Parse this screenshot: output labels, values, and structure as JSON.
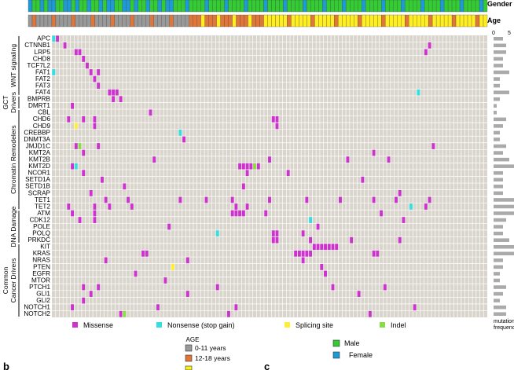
{
  "chart_data": {
    "type": "heatmap",
    "annotation_rows": [
      {
        "label": "Gender"
      },
      {
        "label": "Age"
      }
    ],
    "genes": [
      "APC",
      "CTNNB1",
      "LRP5",
      "CHD8",
      "TCF7L2",
      "FAT1",
      "FAT2",
      "FAT3",
      "FAT4",
      "BMPRB",
      "DMRT1",
      "CBL",
      "CHD6",
      "CHD9",
      "CREBBP",
      "DNMT3A",
      "JMJD1C",
      "KMT2A",
      "KMT2B",
      "KMT2D",
      "NCOR1",
      "SETD1A",
      "SETD1B",
      "SCRAP",
      "TET1",
      "TET2",
      "ATM",
      "CDK12",
      "POLE",
      "POLQ",
      "PRKDC",
      "KIT",
      "KRAS",
      "NRAS",
      "PTEN",
      "EGFR",
      "MTOR",
      "PTCH1",
      "GLI1",
      "GLI2",
      "NOTCH1",
      "NOTCH2"
    ],
    "groups": [
      {
        "label": "WNT signaling",
        "start": 0,
        "end": 8
      },
      {
        "label": "GCT Drivers",
        "start": 9,
        "end": 10
      },
      {
        "label": "Chromatin Remodelers",
        "start": 11,
        "end": 25
      },
      {
        "label": "DNA Damage",
        "start": 26,
        "end": 30
      },
      {
        "label": "Common Cancer Drivers",
        "start": 31,
        "end": 41
      }
    ],
    "n_samples": 117,
    "mutations": [
      [
        0,
        0,
        "nonsense"
      ],
      [
        0,
        1,
        "missense"
      ],
      [
        1,
        3,
        "missense"
      ],
      [
        1,
        101,
        "missense"
      ],
      [
        2,
        6,
        "missense"
      ],
      [
        2,
        7,
        "missense"
      ],
      [
        2,
        100,
        "missense"
      ],
      [
        3,
        8,
        "missense"
      ],
      [
        4,
        9,
        "missense"
      ],
      [
        5,
        0,
        "nonsense"
      ],
      [
        5,
        10,
        "missense"
      ],
      [
        5,
        12,
        "missense"
      ],
      [
        6,
        11,
        "missense"
      ],
      [
        7,
        12,
        "missense"
      ],
      [
        8,
        15,
        "missense"
      ],
      [
        8,
        16,
        "missense"
      ],
      [
        8,
        17,
        "missense"
      ],
      [
        8,
        98,
        "nonsense"
      ],
      [
        9,
        16,
        "missense"
      ],
      [
        9,
        18,
        "missense"
      ],
      [
        10,
        5,
        "missense"
      ],
      [
        11,
        26,
        "missense"
      ],
      [
        12,
        4,
        "missense"
      ],
      [
        12,
        8,
        "missense"
      ],
      [
        12,
        11,
        "missense"
      ],
      [
        12,
        59,
        "missense"
      ],
      [
        12,
        60,
        "missense"
      ],
      [
        13,
        6,
        "splicing"
      ],
      [
        13,
        11,
        "missense"
      ],
      [
        13,
        60,
        "missense"
      ],
      [
        14,
        34,
        "nonsense"
      ],
      [
        15,
        35,
        "missense"
      ],
      [
        16,
        6,
        "missense"
      ],
      [
        16,
        7,
        "indel"
      ],
      [
        16,
        12,
        "missense"
      ],
      [
        16,
        102,
        "missense"
      ],
      [
        17,
        8,
        "missense"
      ],
      [
        17,
        86,
        "missense"
      ],
      [
        18,
        27,
        "missense"
      ],
      [
        18,
        58,
        "missense"
      ],
      [
        18,
        79,
        "missense"
      ],
      [
        18,
        90,
        "missense"
      ],
      [
        19,
        5,
        "missense"
      ],
      [
        19,
        6,
        "nonsense"
      ],
      [
        19,
        50,
        "missense"
      ],
      [
        19,
        51,
        "missense"
      ],
      [
        19,
        52,
        "missense"
      ],
      [
        19,
        53,
        "missense"
      ],
      [
        19,
        54,
        "indel"
      ],
      [
        19,
        55,
        "missense"
      ],
      [
        20,
        8,
        "missense"
      ],
      [
        20,
        52,
        "missense"
      ],
      [
        20,
        63,
        "missense"
      ],
      [
        21,
        13,
        "missense"
      ],
      [
        21,
        83,
        "missense"
      ],
      [
        22,
        19,
        "missense"
      ],
      [
        22,
        51,
        "missense"
      ],
      [
        23,
        10,
        "missense"
      ],
      [
        23,
        93,
        "missense"
      ],
      [
        24,
        14,
        "missense"
      ],
      [
        24,
        20,
        "missense"
      ],
      [
        24,
        34,
        "missense"
      ],
      [
        24,
        41,
        "missense"
      ],
      [
        24,
        48,
        "missense"
      ],
      [
        24,
        58,
        "missense"
      ],
      [
        24,
        68,
        "missense"
      ],
      [
        24,
        77,
        "missense"
      ],
      [
        24,
        86,
        "missense"
      ],
      [
        24,
        92,
        "missense"
      ],
      [
        24,
        101,
        "missense"
      ],
      [
        25,
        4,
        "missense"
      ],
      [
        25,
        11,
        "missense"
      ],
      [
        25,
        15,
        "missense"
      ],
      [
        25,
        21,
        "missense"
      ],
      [
        25,
        49,
        "missense"
      ],
      [
        25,
        52,
        "missense"
      ],
      [
        25,
        96,
        "nonsense"
      ],
      [
        25,
        100,
        "missense"
      ],
      [
        26,
        5,
        "missense"
      ],
      [
        26,
        11,
        "missense"
      ],
      [
        26,
        48,
        "missense"
      ],
      [
        26,
        49,
        "missense"
      ],
      [
        26,
        50,
        "missense"
      ],
      [
        26,
        51,
        "missense"
      ],
      [
        26,
        57,
        "missense"
      ],
      [
        26,
        88,
        "missense"
      ],
      [
        27,
        7,
        "missense"
      ],
      [
        27,
        11,
        "missense"
      ],
      [
        27,
        69,
        "nonsense"
      ],
      [
        27,
        94,
        "missense"
      ],
      [
        28,
        31,
        "missense"
      ],
      [
        28,
        71,
        "missense"
      ],
      [
        29,
        44,
        "nonsense"
      ],
      [
        29,
        59,
        "missense"
      ],
      [
        29,
        60,
        "missense"
      ],
      [
        29,
        67,
        "missense"
      ],
      [
        30,
        59,
        "missense"
      ],
      [
        30,
        60,
        "missense"
      ],
      [
        30,
        69,
        "missense"
      ],
      [
        30,
        80,
        "missense"
      ],
      [
        30,
        93,
        "missense"
      ],
      [
        31,
        70,
        "missense"
      ],
      [
        31,
        71,
        "missense"
      ],
      [
        31,
        72,
        "missense"
      ],
      [
        31,
        73,
        "missense"
      ],
      [
        31,
        74,
        "missense"
      ],
      [
        31,
        75,
        "missense"
      ],
      [
        31,
        76,
        "missense"
      ],
      [
        32,
        24,
        "missense"
      ],
      [
        32,
        25,
        "missense"
      ],
      [
        32,
        65,
        "missense"
      ],
      [
        32,
        66,
        "missense"
      ],
      [
        32,
        67,
        "missense"
      ],
      [
        32,
        68,
        "missense"
      ],
      [
        32,
        69,
        "missense"
      ],
      [
        32,
        86,
        "missense"
      ],
      [
        32,
        87,
        "missense"
      ],
      [
        33,
        14,
        "missense"
      ],
      [
        33,
        36,
        "missense"
      ],
      [
        33,
        67,
        "missense"
      ],
      [
        34,
        32,
        "splicing"
      ],
      [
        34,
        72,
        "missense"
      ],
      [
        35,
        22,
        "missense"
      ],
      [
        35,
        73,
        "missense"
      ],
      [
        36,
        30,
        "missense"
      ],
      [
        37,
        8,
        "missense"
      ],
      [
        37,
        12,
        "missense"
      ],
      [
        37,
        44,
        "missense"
      ],
      [
        37,
        75,
        "missense"
      ],
      [
        37,
        89,
        "missense"
      ],
      [
        38,
        10,
        "missense"
      ],
      [
        38,
        36,
        "missense"
      ],
      [
        38,
        82,
        "missense"
      ],
      [
        39,
        8,
        "missense"
      ],
      [
        40,
        5,
        "missense"
      ],
      [
        40,
        28,
        "missense"
      ],
      [
        40,
        49,
        "missense"
      ],
      [
        40,
        97,
        "missense"
      ],
      [
        41,
        18,
        "missense"
      ],
      [
        41,
        19,
        "indel"
      ],
      [
        41,
        47,
        "missense"
      ],
      [
        41,
        85,
        "missense"
      ]
    ],
    "mutation_frequency": [
      3,
      4,
      4,
      3,
      3,
      5,
      2,
      2,
      5,
      2,
      1,
      1,
      4,
      3,
      2,
      2,
      4,
      3,
      5,
      9,
      3,
      3,
      3,
      3,
      8,
      7,
      7,
      4,
      3,
      3,
      5,
      7,
      9,
      3,
      3,
      2,
      2,
      4,
      3,
      2,
      4,
      4
    ],
    "frequency_axis": {
      "ticks": [
        "0",
        "5"
      ],
      "label": "mutation frequency"
    },
    "legend": {
      "mutation_types": [
        {
          "key": "missense",
          "label": "Missense",
          "color": "#cc33cc"
        },
        {
          "key": "nonsense",
          "label": "Nonsense (stop gain)",
          "color": "#33e0e0"
        },
        {
          "key": "splicing",
          "label": "Splicing site",
          "color": "#ffee33"
        },
        {
          "key": "indel",
          "label": "Indel",
          "color": "#88dd44"
        }
      ],
      "age_title": "AGE",
      "age_groups": [
        {
          "label": "0-11 years",
          "color": "#999999"
        },
        {
          "label": "12-18 years",
          "color": "#e0763a"
        }
      ],
      "genders": [
        {
          "label": "Male",
          "color": "#33cc33"
        },
        {
          "label": "Female",
          "color": "#1e9ad6"
        }
      ]
    },
    "panel_labels": [
      "b",
      "c"
    ]
  },
  "colors": {
    "cell_bg": "#d9d5cc",
    "grid": "#ffffff",
    "freq_bar": "#aaaaaa",
    "male": "#33cc33",
    "female": "#1e9ad6",
    "age_child": "#999999",
    "age_teen": "#e0763a",
    "age_adult": "#ffee22"
  }
}
